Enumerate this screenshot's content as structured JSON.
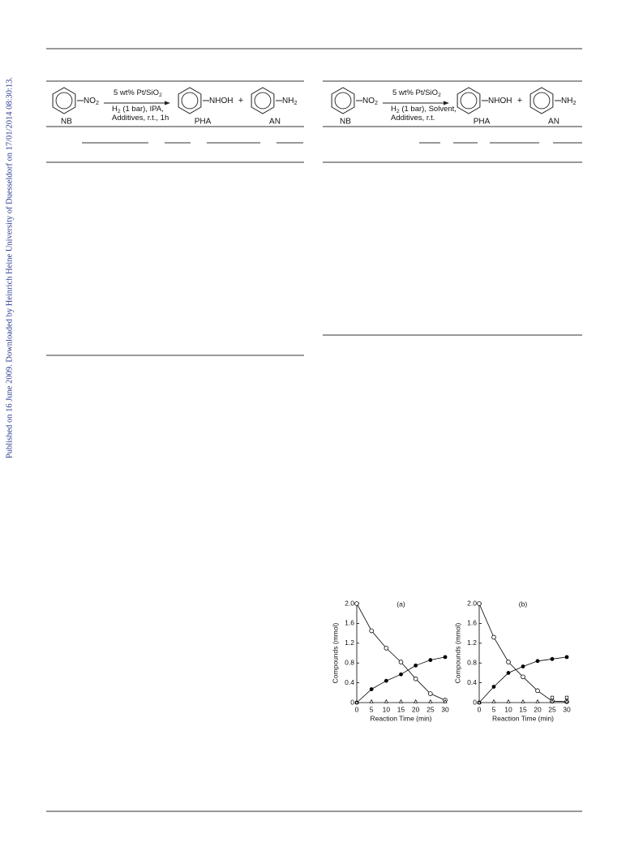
{
  "sidebar": "Published on 16 June 2009. Downloaded by Heinrich Heine University of Duesseldorf on 17/01/2014 08:30:13.",
  "schemes": [
    {
      "substrate": "NB",
      "substrate_group": [
        "NO",
        "2"
      ],
      "conditions": [
        [
          "5 wt% Pt/SiO",
          "2"
        ],
        [
          "H",
          "2",
          " (1 bar), IPA,"
        ],
        [
          "Additives, r.t., 1h"
        ]
      ],
      "product_1": "PHA",
      "product_1_group": [
        "NHOH"
      ],
      "plus": "+",
      "product_2": "AN",
      "product_2_group": [
        "NH",
        "2"
      ]
    },
    {
      "substrate": "NB",
      "substrate_group": [
        "NO",
        "2"
      ],
      "conditions": [
        [
          "5 wt% Pt/SiO",
          "2"
        ],
        [
          "H",
          "2",
          " (1 bar), Solvent,"
        ],
        [
          "Additives, r.t."
        ]
      ],
      "product_1": "PHA",
      "product_1_group": [
        "NHOH"
      ],
      "plus": "+",
      "product_2": "AN",
      "product_2_group": [
        "NH",
        "2"
      ]
    }
  ],
  "chart_data": [
    {
      "type": "scatter",
      "title": "(a)",
      "x_label": "Reaction Time (min)",
      "y_label": "Compounds (mmol)",
      "x": [
        0,
        5,
        10,
        15,
        20,
        25,
        30
      ],
      "xlim": [
        0,
        30
      ],
      "ylim": [
        0,
        2
      ],
      "xticks": [
        0,
        5,
        10,
        15,
        20,
        25,
        30
      ],
      "yticks": [
        0,
        0.4,
        0.8,
        1.2,
        1.6,
        {
          "value": 2,
          "label": "2.0"
        }
      ],
      "series": [
        {
          "marker": "open-circle",
          "color": "#000000",
          "line": true,
          "values": [
            2.0,
            1.45,
            1.1,
            0.82,
            0.48,
            0.18,
            0.05
          ]
        },
        {
          "marker": "filled-circle",
          "color": "#000000",
          "line": true,
          "values": [
            0,
            0.27,
            0.44,
            0.57,
            0.75,
            0.86,
            0.92
          ]
        },
        {
          "marker": "triangle",
          "color": "#000000",
          "line": false,
          "values": [
            0,
            0.02,
            0.02,
            0.02,
            0.02,
            0.02,
            0.02
          ]
        }
      ]
    },
    {
      "type": "scatter",
      "title": "(b)",
      "x_label": "Reaction Time (min)",
      "y_label": "Compounds (mmol)",
      "x": [
        0,
        5,
        10,
        15,
        20,
        25,
        30
      ],
      "xlim": [
        0,
        30
      ],
      "ylim": [
        0,
        2
      ],
      "xticks": [
        0,
        5,
        10,
        15,
        20,
        25,
        30
      ],
      "yticks": [
        0,
        0.4,
        0.8,
        1.2,
        1.6,
        {
          "value": 2,
          "label": "2.0"
        }
      ],
      "series": [
        {
          "marker": "open-circle",
          "color": "#000000",
          "line": true,
          "values": [
            2.0,
            1.32,
            0.82,
            0.52,
            0.24,
            0.03,
            0.02
          ]
        },
        {
          "marker": "filled-circle",
          "color": "#000000",
          "line": true,
          "values": [
            0,
            0.32,
            0.6,
            0.73,
            0.84,
            0.88,
            0.92
          ]
        },
        {
          "marker": "triangle",
          "color": "#000000",
          "line": false,
          "values": [
            0,
            0.02,
            0.02,
            0.02,
            0.02,
            0.02,
            0.02
          ]
        },
        {
          "marker": "open-square",
          "color": "#000000",
          "line": false,
          "values": [
            null,
            null,
            null,
            null,
            null,
            0.1,
            0.1
          ]
        }
      ]
    }
  ]
}
